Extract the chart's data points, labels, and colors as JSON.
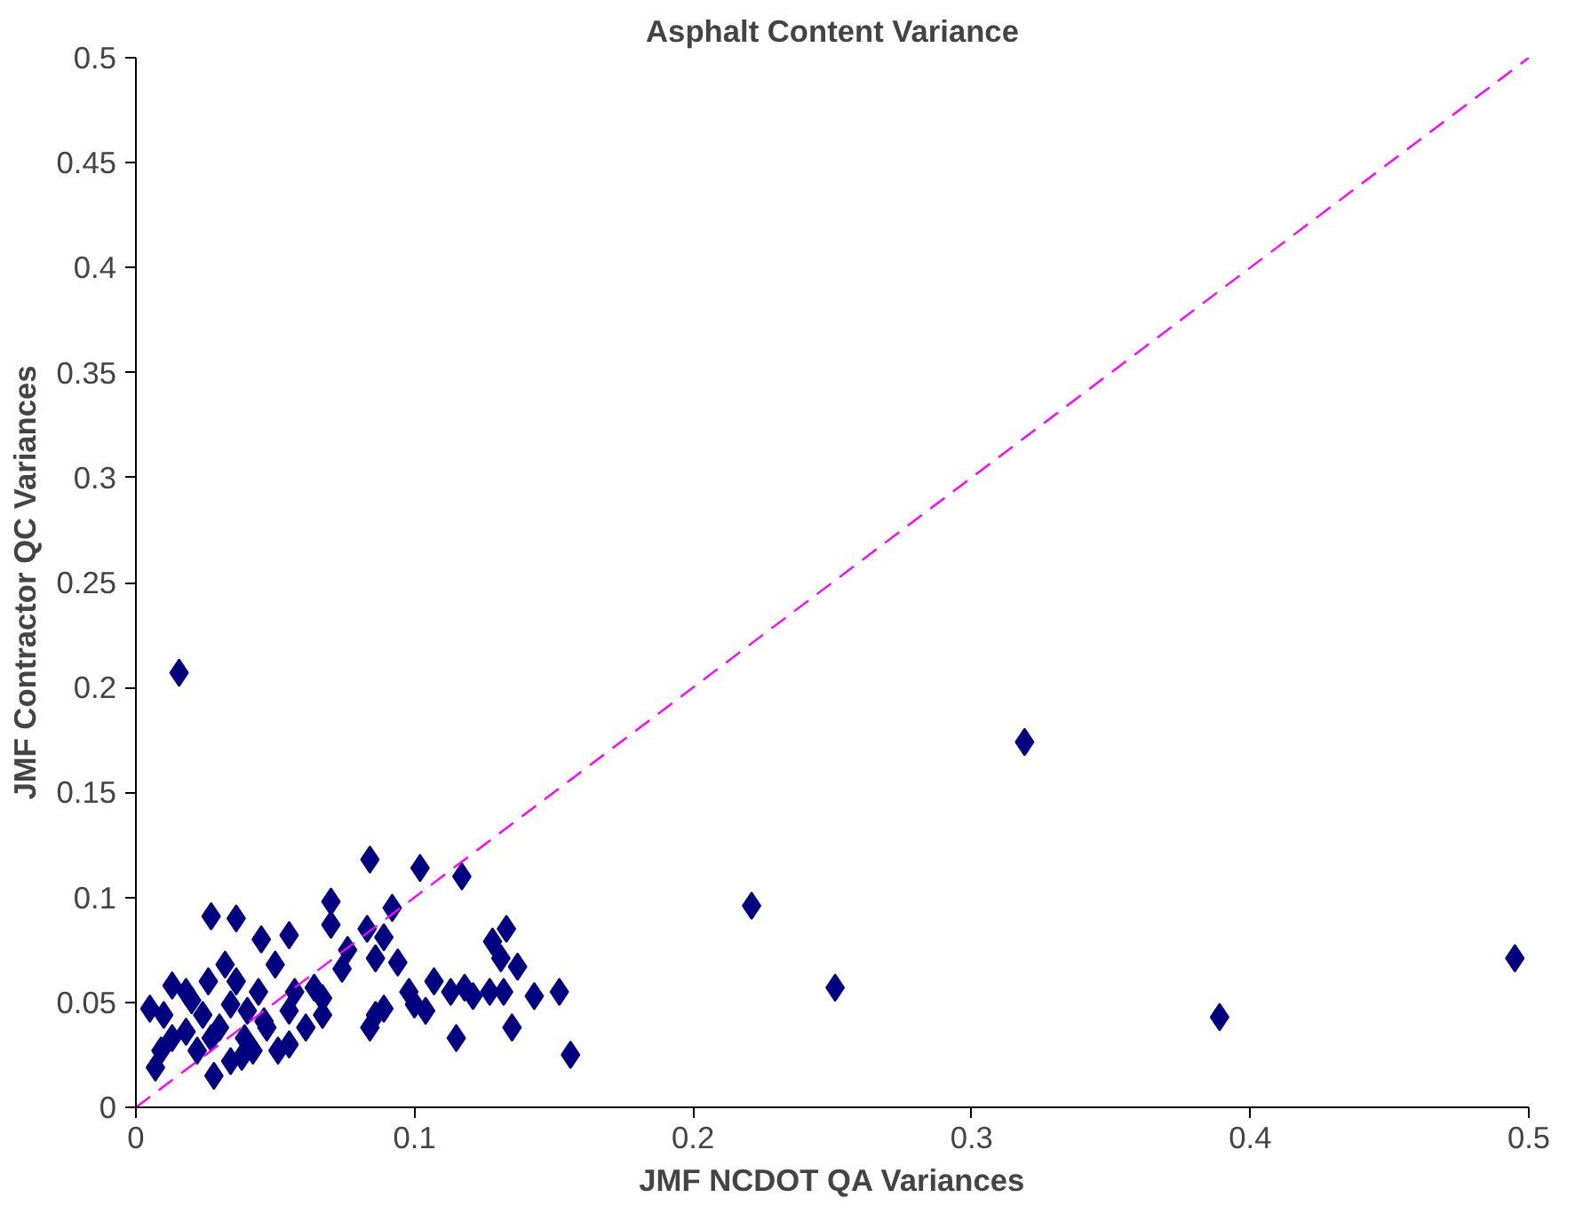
{
  "chart_data": {
    "type": "scatter",
    "title": "Asphalt Content Variance",
    "xlabel": "JMF NCDOT QA Variances",
    "ylabel": "JMF Contractor QC Variances",
    "xlim": [
      0,
      0.5
    ],
    "ylim": [
      0,
      0.5
    ],
    "xticks": [
      0,
      0.1,
      0.2,
      0.3,
      0.4,
      0.5
    ],
    "yticks": [
      0,
      0.05,
      0.1,
      0.15,
      0.2,
      0.25,
      0.3,
      0.35,
      0.4,
      0.45,
      0.5
    ],
    "grid": false,
    "marker": "diamond",
    "series": [
      {
        "color": "#000080",
        "x": [
          0.0155,
          0.319,
          0.221,
          0.251,
          0.389,
          0.495,
          0.084,
          0.102,
          0.117,
          0.027,
          0.036,
          0.07,
          0.07,
          0.083,
          0.092,
          0.089,
          0.076,
          0.086,
          0.094,
          0.133,
          0.131,
          0.128,
          0.137,
          0.045,
          0.055,
          0.05,
          0.032,
          0.018,
          0.013,
          0.005,
          0.009,
          0.007,
          0.024,
          0.03,
          0.039,
          0.028,
          0.038,
          0.051,
          0.055,
          0.061,
          0.067,
          0.067,
          0.055,
          0.044,
          0.036,
          0.026,
          0.018,
          0.022,
          0.046,
          0.084,
          0.086,
          0.089,
          0.098,
          0.1,
          0.107,
          0.113,
          0.115,
          0.121,
          0.127,
          0.132,
          0.135,
          0.143,
          0.152,
          0.156,
          0.104,
          0.118,
          0.01,
          0.013,
          0.02,
          0.034,
          0.04,
          0.057,
          0.064,
          0.047,
          0.074,
          0.027,
          0.034,
          0.042
        ],
        "values": [
          0.207,
          0.174,
          0.096,
          0.057,
          0.043,
          0.071,
          0.118,
          0.114,
          0.11,
          0.091,
          0.09,
          0.098,
          0.087,
          0.085,
          0.095,
          0.081,
          0.075,
          0.071,
          0.069,
          0.085,
          0.071,
          0.079,
          0.067,
          0.08,
          0.082,
          0.068,
          0.068,
          0.055,
          0.058,
          0.047,
          0.027,
          0.019,
          0.044,
          0.038,
          0.033,
          0.015,
          0.024,
          0.027,
          0.03,
          0.038,
          0.044,
          0.052,
          0.046,
          0.055,
          0.06,
          0.06,
          0.036,
          0.027,
          0.041,
          0.038,
          0.044,
          0.047,
          0.055,
          0.049,
          0.06,
          0.055,
          0.033,
          0.053,
          0.055,
          0.055,
          0.038,
          0.053,
          0.055,
          0.025,
          0.046,
          0.057,
          0.044,
          0.033,
          0.051,
          0.049,
          0.046,
          0.055,
          0.057,
          0.038,
          0.066,
          0.033,
          0.022,
          0.027
        ]
      },
      {
        "type": "line",
        "color": "#ff00ff",
        "line_style": "dashed",
        "marker": "none",
        "x": [
          0,
          0.5
        ],
        "values": [
          0,
          0.5
        ]
      }
    ]
  }
}
